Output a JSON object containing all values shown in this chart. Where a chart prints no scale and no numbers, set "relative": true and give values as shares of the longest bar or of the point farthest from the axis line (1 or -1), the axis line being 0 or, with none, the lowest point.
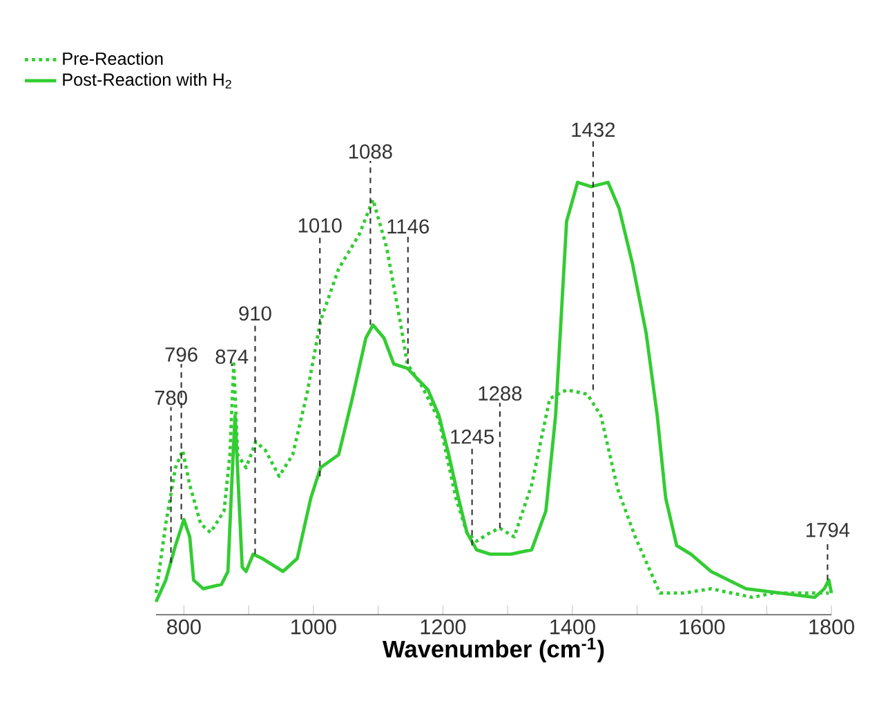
{
  "chart_data": {
    "type": "line",
    "relative": true,
    "xlabel": "Wavenumber (cm$^{-1}$)",
    "xlim": [
      757,
      1800
    ],
    "xticks": [
      800,
      {
        "value": 900,
        "label": null
      },
      1000,
      {
        "value": 1100,
        "label": null
      },
      1200,
      {
        "value": 1300,
        "label": null
      },
      1400,
      {
        "value": 1500,
        "label": null
      },
      1600,
      {
        "value": 1700,
        "label": null
      },
      1800
    ],
    "legend": "top left",
    "series": [
      {
        "name": "Pre-Reaction",
        "color": "#33cc33",
        "line_style": "dotted",
        "x": [
          757,
          772,
          787,
          798,
          809,
          826,
          841,
          862,
          871,
          877,
          883,
          896,
          911,
          926,
          947,
          968,
          990,
          1011,
          1039,
          1071,
          1092,
          1113,
          1135,
          1145,
          1167,
          1194,
          1220,
          1237,
          1252,
          1273,
          1288,
          1310,
          1337,
          1365,
          1391,
          1423,
          1444,
          1470,
          1497,
          1535,
          1572,
          1614,
          1678,
          1710,
          1764,
          1796
        ],
        "values": [
          0.05,
          0.21,
          0.34,
          0.38,
          0.3,
          0.21,
          0.19,
          0.24,
          0.37,
          0.58,
          0.37,
          0.34,
          0.4,
          0.38,
          0.32,
          0.37,
          0.51,
          0.68,
          0.8,
          0.88,
          0.96,
          0.85,
          0.67,
          0.58,
          0.53,
          0.45,
          0.27,
          0.19,
          0.17,
          0.19,
          0.2,
          0.18,
          0.3,
          0.5,
          0.52,
          0.51,
          0.46,
          0.29,
          0.18,
          0.05,
          0.05,
          0.06,
          0.04,
          0.05,
          0.05,
          0.05
        ]
      },
      {
        "name": "Post-Reaction with H$_{2}$",
        "color": "#33cc33",
        "line_style": "solid",
        "x": [
          757,
          772,
          787,
          800,
          809,
          815,
          830,
          858,
          868,
          875,
          879,
          890,
          896,
          907,
          921,
          953,
          975,
          996,
          1011,
          1039,
          1060,
          1081,
          1092,
          1109,
          1124,
          1145,
          1177,
          1194,
          1209,
          1224,
          1237,
          1252,
          1273,
          1305,
          1337,
          1359,
          1374,
          1391,
          1408,
          1429,
          1455,
          1472,
          1493,
          1514,
          1531,
          1544,
          1561,
          1583,
          1614,
          1668,
          1721,
          1774,
          1789,
          1796,
          1800
        ],
        "values": [
          0.03,
          0.08,
          0.16,
          0.22,
          0.18,
          0.08,
          0.06,
          0.07,
          0.1,
          0.34,
          0.46,
          0.11,
          0.1,
          0.14,
          0.13,
          0.1,
          0.13,
          0.27,
          0.34,
          0.37,
          0.5,
          0.64,
          0.67,
          0.64,
          0.58,
          0.57,
          0.52,
          0.46,
          0.37,
          0.27,
          0.19,
          0.15,
          0.14,
          0.14,
          0.15,
          0.24,
          0.46,
          0.91,
          1.0,
          0.99,
          1.0,
          0.94,
          0.81,
          0.65,
          0.46,
          0.27,
          0.16,
          0.14,
          0.1,
          0.06,
          0.05,
          0.04,
          0.06,
          0.08,
          0.05
        ]
      }
    ],
    "annotations": [
      {
        "text": "780",
        "x": 780,
        "y": 0.12
      },
      {
        "text": "796",
        "x": 796,
        "y": 0.22
      },
      {
        "text": "874",
        "x": 874,
        "y": 0.58
      },
      {
        "text": "910",
        "x": 910,
        "y": 0.14
      },
      {
        "text": "1010",
        "x": 1010,
        "y": 0.32
      },
      {
        "text": "1088",
        "x": 1088,
        "y": 0.67
      },
      {
        "text": "1146",
        "x": 1146,
        "y": 0.58
      },
      {
        "text": "1245",
        "x": 1245,
        "y": 0.16
      },
      {
        "text": "1288",
        "x": 1288,
        "y": 0.2
      },
      {
        "text": "1432",
        "x": 1432,
        "y": 0.52
      },
      {
        "text": "1794",
        "x": 1794,
        "y": 0.08
      }
    ]
  }
}
